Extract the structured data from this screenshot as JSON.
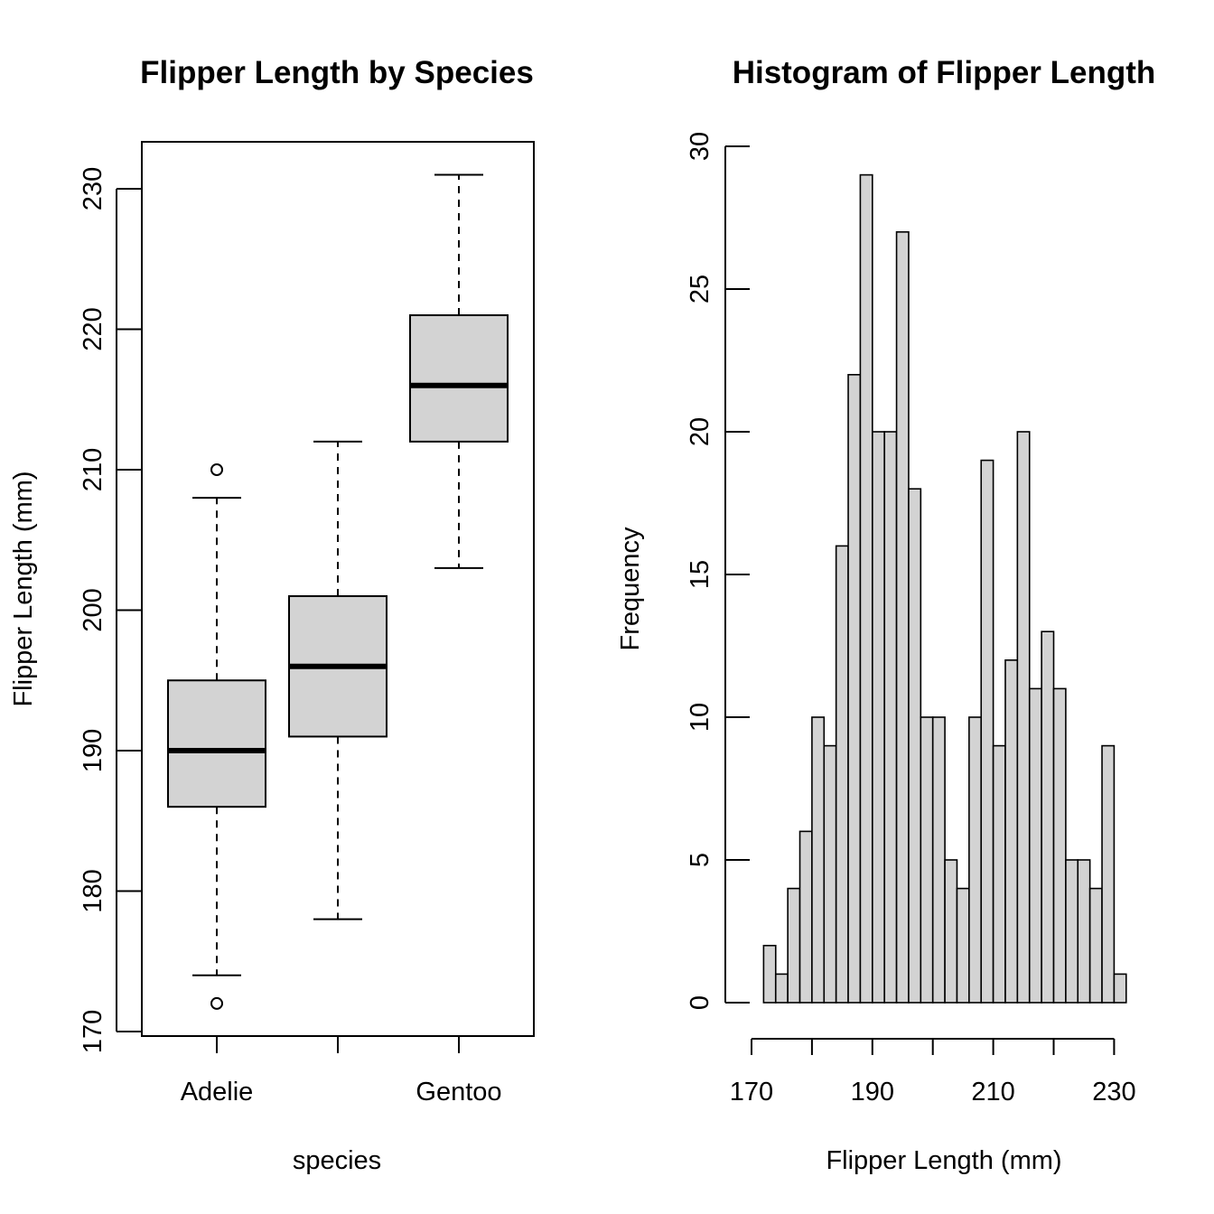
{
  "chart_data": [
    {
      "type": "box",
      "title": "Flipper Length by Species",
      "xlabel": "species",
      "ylabel": "Flipper Length (mm)",
      "ylim": [
        170,
        233
      ],
      "yticks": [
        "170",
        "180",
        "190",
        "200",
        "210",
        "220",
        "230"
      ],
      "xticks": [
        "Adelie",
        "",
        "Gentoo"
      ],
      "fill_color": "#d3d3d3",
      "boxes": [
        {
          "group": "Adelie",
          "whisker_low": 174,
          "q1": 186,
          "median": 190,
          "q3": 195,
          "whisker_high": 208,
          "outliers": [
            172,
            210
          ]
        },
        {
          "group": "",
          "whisker_low": 178,
          "q1": 191,
          "median": 196,
          "q3": 201,
          "whisker_high": 212,
          "outliers": []
        },
        {
          "group": "Gentoo",
          "whisker_low": 203,
          "q1": 212,
          "median": 216,
          "q3": 221,
          "whisker_high": 231,
          "outliers": []
        }
      ]
    },
    {
      "type": "histogram",
      "title": "Histogram of Flipper Length",
      "xlabel": "Flipper Length (mm)",
      "ylabel": "Frequency",
      "xlim": [
        170,
        232
      ],
      "ylim": [
        0,
        30
      ],
      "xticks": [
        "170",
        "190",
        "210",
        "230"
      ],
      "yticks": [
        "0",
        "5",
        "10",
        "15",
        "20",
        "25",
        "30"
      ],
      "bin_start": 172,
      "bin_width": 2,
      "counts": [
        2,
        1,
        4,
        6,
        10,
        9,
        16,
        22,
        29,
        20,
        20,
        27,
        18,
        10,
        10,
        5,
        4,
        10,
        19,
        9,
        12,
        20,
        11,
        13,
        11,
        5,
        5,
        4,
        9,
        1
      ],
      "fill_color": "#d3d3d3"
    }
  ]
}
